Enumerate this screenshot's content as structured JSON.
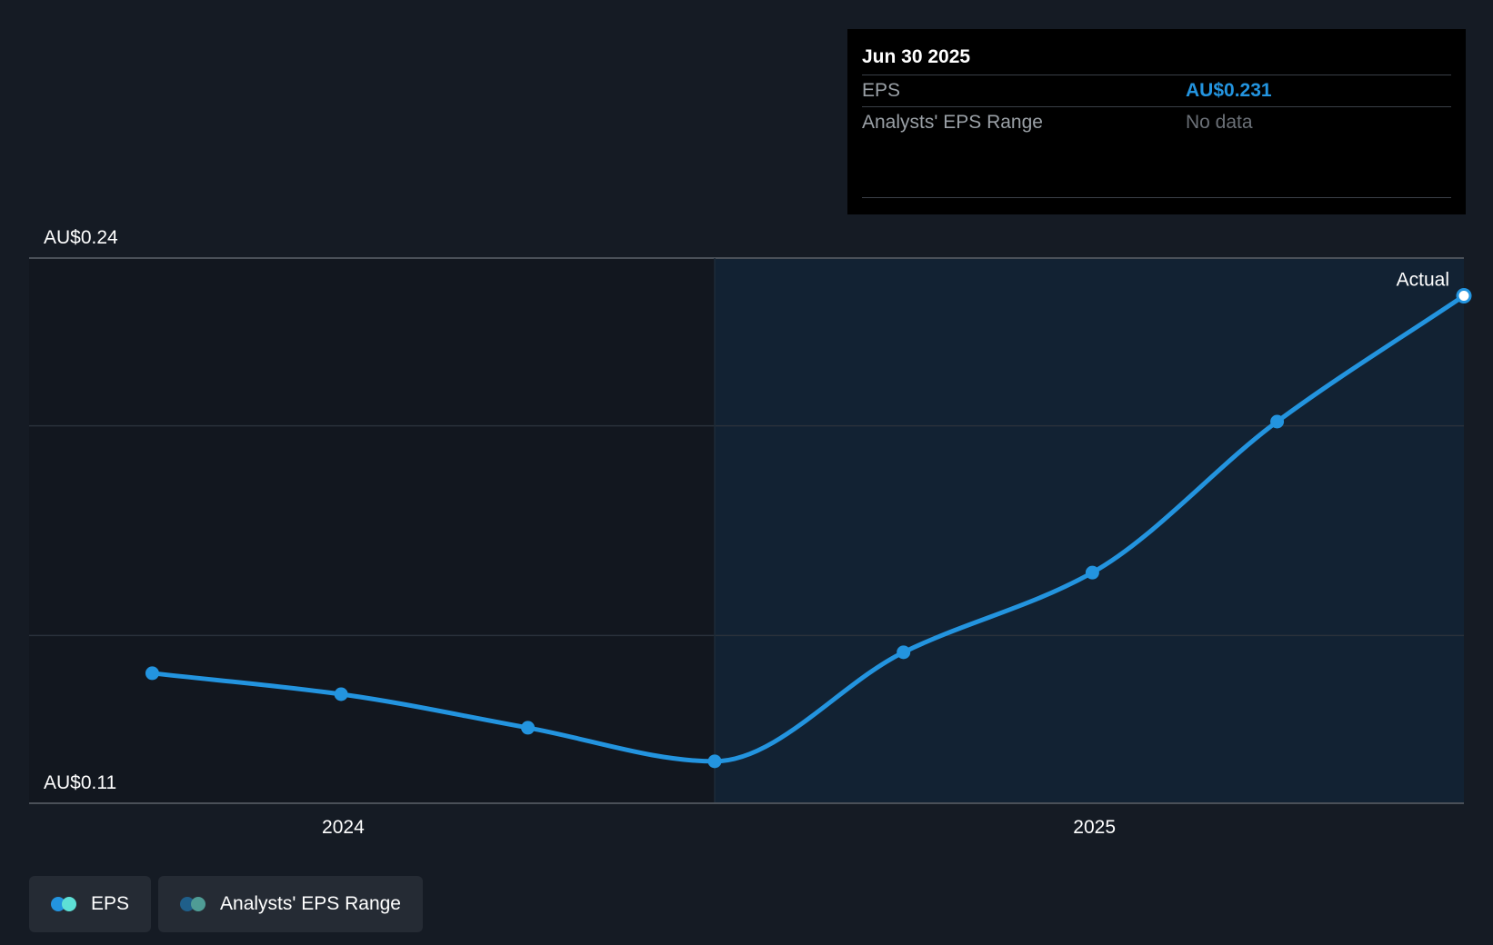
{
  "chart_data": {
    "type": "line",
    "series": [
      {
        "name": "EPS",
        "x": [
          "2023-09-30",
          "2023-12-31",
          "2024-03-31",
          "2024-06-30",
          "2024-09-30",
          "2024-12-31",
          "2025-03-31",
          "2025-06-30"
        ],
        "values": [
          0.141,
          0.136,
          0.128,
          0.12,
          0.146,
          0.165,
          0.201,
          0.231
        ]
      }
    ],
    "x_range": [
      "2023-08-01",
      "2025-06-30"
    ],
    "forecast_start": "2024-06-30",
    "ylim": [
      0.11,
      0.24
    ],
    "y_labels": [
      "AU$0.24",
      "AU$0.11"
    ],
    "x_ticks": [
      {
        "label": "2024",
        "date": "2024-01-01"
      },
      {
        "label": "2025",
        "date": "2025-01-01"
      }
    ],
    "gridlines": [
      0.24,
      0.2,
      0.15
    ],
    "annotation": "Actual",
    "tooltip": {
      "date": "Jun 30 2025",
      "rows": [
        {
          "label": "EPS",
          "value": "AU$0.231"
        },
        {
          "label": "Analysts' EPS Range",
          "value": "No data"
        }
      ]
    },
    "legend": [
      "EPS",
      "Analysts' EPS Range"
    ],
    "legend_position": "bottom-left",
    "colors": {
      "background": "#151b24",
      "past_region": "#12171f",
      "future_region": "#122233",
      "line": "#2394df",
      "grid": "#2a313b",
      "axis": "#4a5058",
      "eps_legend_a": "#2394df",
      "eps_legend_b": "#5ee0d6",
      "range_legend_a": "#1f5f8a",
      "range_legend_b": "#4f9c95"
    }
  }
}
